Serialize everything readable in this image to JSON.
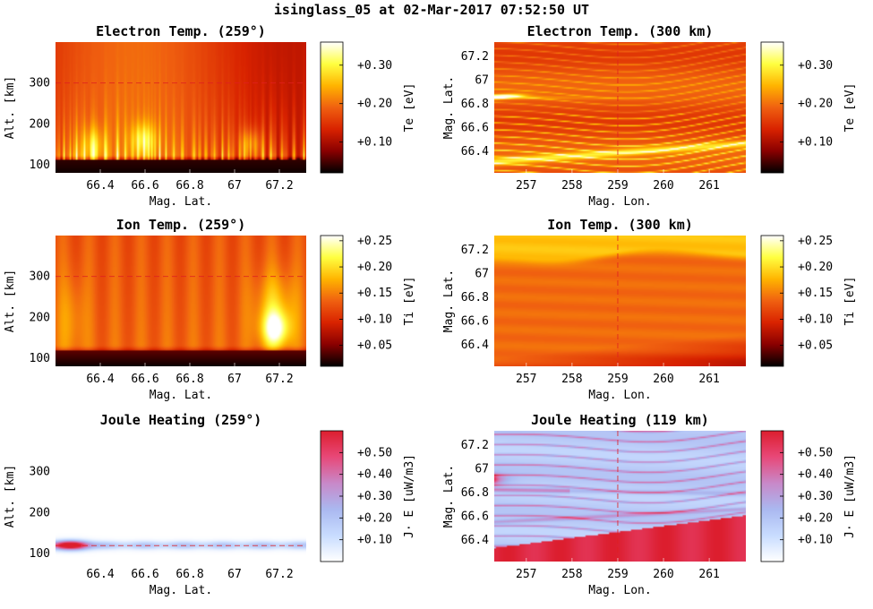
{
  "figure": {
    "title": "isinglass_05 at 02-Mar-2017 07:52:50 UT"
  },
  "colormaps": {
    "hot": [
      "#000000",
      "#8a0000",
      "#d82200",
      "#f06010",
      "#ffb400",
      "#ffff40",
      "#ffffff"
    ],
    "cool_warm": [
      "#ffffff",
      "#c8dcff",
      "#aab8f0",
      "#c888c8",
      "#e84878",
      "#dc1e2e"
    ]
  },
  "chart_data": [
    {
      "id": "te_alt",
      "type": "heatmap",
      "title": "Electron Temp. (259°)",
      "xlabel": "Mag. Lat.",
      "ylabel": "Alt. [km]",
      "xlim": [
        66.2,
        67.32
      ],
      "ylim": [
        80,
        400
      ],
      "xticks": [
        66.4,
        66.6,
        66.8,
        67.0,
        67.2
      ],
      "xtick_labels": [
        "66.4",
        "66.6",
        "66.8",
        "67",
        "67.2"
      ],
      "yticks": [
        100,
        200,
        300
      ],
      "ytick_labels": [
        "100",
        "200",
        "300"
      ],
      "reference_line": {
        "axis": "y",
        "value": 300
      },
      "colorbar": {
        "label": "Te [eV]",
        "min": 0.02,
        "max": 0.36,
        "ticks": [
          0.1,
          0.2,
          0.3
        ],
        "tick_labels": [
          "+0.10",
          "+0.20",
          "+0.30"
        ],
        "colormap": "hot"
      }
    },
    {
      "id": "te_map",
      "type": "heatmap",
      "title": "Electron Temp. (300 km)",
      "xlabel": "Mag. Lon.",
      "ylabel": "Mag. Lat.",
      "xlim": [
        256.3,
        261.8
      ],
      "ylim": [
        66.22,
        67.32
      ],
      "xticks": [
        257,
        258,
        259,
        260,
        261
      ],
      "xtick_labels": [
        "257",
        "258",
        "259",
        "260",
        "261"
      ],
      "yticks": [
        66.4,
        66.6,
        66.8,
        67.0,
        67.2
      ],
      "ytick_labels": [
        "66.4",
        "66.6",
        "66.8",
        "67",
        "67.2"
      ],
      "reference_line": {
        "axis": "x",
        "value": 259
      },
      "colorbar": {
        "label": "Te [eV]",
        "min": 0.02,
        "max": 0.36,
        "ticks": [
          0.1,
          0.2,
          0.3
        ],
        "tick_labels": [
          "+0.10",
          "+0.20",
          "+0.30"
        ],
        "colormap": "hot"
      }
    },
    {
      "id": "ti_alt",
      "type": "heatmap",
      "title": "Ion Temp. (259°)",
      "xlabel": "Mag. Lat.",
      "ylabel": "Alt. [km]",
      "xlim": [
        66.2,
        67.32
      ],
      "ylim": [
        80,
        400
      ],
      "xticks": [
        66.4,
        66.6,
        66.8,
        67.0,
        67.2
      ],
      "xtick_labels": [
        "66.4",
        "66.6",
        "66.8",
        "67",
        "67.2"
      ],
      "yticks": [
        100,
        200,
        300
      ],
      "ytick_labels": [
        "100",
        "200",
        "300"
      ],
      "reference_line": {
        "axis": "y",
        "value": 300
      },
      "colorbar": {
        "label": "Ti [eV]",
        "min": 0.01,
        "max": 0.26,
        "ticks": [
          0.05,
          0.1,
          0.15,
          0.2,
          0.25
        ],
        "tick_labels": [
          "+0.05",
          "+0.10",
          "+0.15",
          "+0.20",
          "+0.25"
        ],
        "colormap": "hot"
      }
    },
    {
      "id": "ti_map",
      "type": "heatmap",
      "title": "Ion Temp. (300 km)",
      "xlabel": "Mag. Lon.",
      "ylabel": "Mag. Lat.",
      "xlim": [
        256.3,
        261.8
      ],
      "ylim": [
        66.22,
        67.32
      ],
      "xticks": [
        257,
        258,
        259,
        260,
        261
      ],
      "xtick_labels": [
        "257",
        "258",
        "259",
        "260",
        "261"
      ],
      "yticks": [
        66.4,
        66.6,
        66.8,
        67.0,
        67.2
      ],
      "ytick_labels": [
        "66.4",
        "66.6",
        "66.8",
        "67",
        "67.2"
      ],
      "reference_line": {
        "axis": "x",
        "value": 259
      },
      "colorbar": {
        "label": "Ti [eV]",
        "min": 0.01,
        "max": 0.26,
        "ticks": [
          0.05,
          0.1,
          0.15,
          0.2,
          0.25
        ],
        "tick_labels": [
          "+0.05",
          "+0.10",
          "+0.15",
          "+0.20",
          "+0.25"
        ],
        "colormap": "hot"
      }
    },
    {
      "id": "jh_alt",
      "type": "heatmap",
      "title": "Joule Heating (259°)",
      "xlabel": "Mag. Lat.",
      "ylabel": "Alt. [km]",
      "xlim": [
        66.2,
        67.32
      ],
      "ylim": [
        80,
        400
      ],
      "xticks": [
        66.4,
        66.6,
        66.8,
        67.0,
        67.2
      ],
      "xtick_labels": [
        "66.4",
        "66.6",
        "66.8",
        "67",
        "67.2"
      ],
      "yticks": [
        100,
        200,
        300
      ],
      "ytick_labels": [
        "100",
        "200",
        "300"
      ],
      "reference_line": {
        "axis": "y",
        "value": 119
      },
      "colorbar": {
        "label": "J· E [uW/m3]",
        "min": 0.0,
        "max": 0.6,
        "ticks": [
          0.1,
          0.2,
          0.3,
          0.4,
          0.5
        ],
        "tick_labels": [
          "+0.10",
          "+0.20",
          "+0.30",
          "+0.40",
          "+0.50"
        ],
        "colormap": "cool_warm"
      }
    },
    {
      "id": "jh_map",
      "type": "heatmap",
      "title": "Joule Heating (119 km)",
      "xlabel": "Mag. Lon.",
      "ylabel": "Mag. Lat.",
      "xlim": [
        256.3,
        261.8
      ],
      "ylim": [
        66.22,
        67.32
      ],
      "xticks": [
        257,
        258,
        259,
        260,
        261
      ],
      "xtick_labels": [
        "257",
        "258",
        "259",
        "260",
        "261"
      ],
      "yticks": [
        66.4,
        66.6,
        66.8,
        67.0,
        67.2
      ],
      "ytick_labels": [
        "66.4",
        "66.6",
        "66.8",
        "67",
        "67.2"
      ],
      "reference_line": {
        "axis": "x",
        "value": 259
      },
      "colorbar": {
        "label": "J· E [uW/m3]",
        "min": 0.0,
        "max": 0.6,
        "ticks": [
          0.1,
          0.2,
          0.3,
          0.4,
          0.5
        ],
        "tick_labels": [
          "+0.10",
          "+0.20",
          "+0.30",
          "+0.40",
          "+0.50"
        ],
        "colormap": "cool_warm"
      }
    }
  ]
}
